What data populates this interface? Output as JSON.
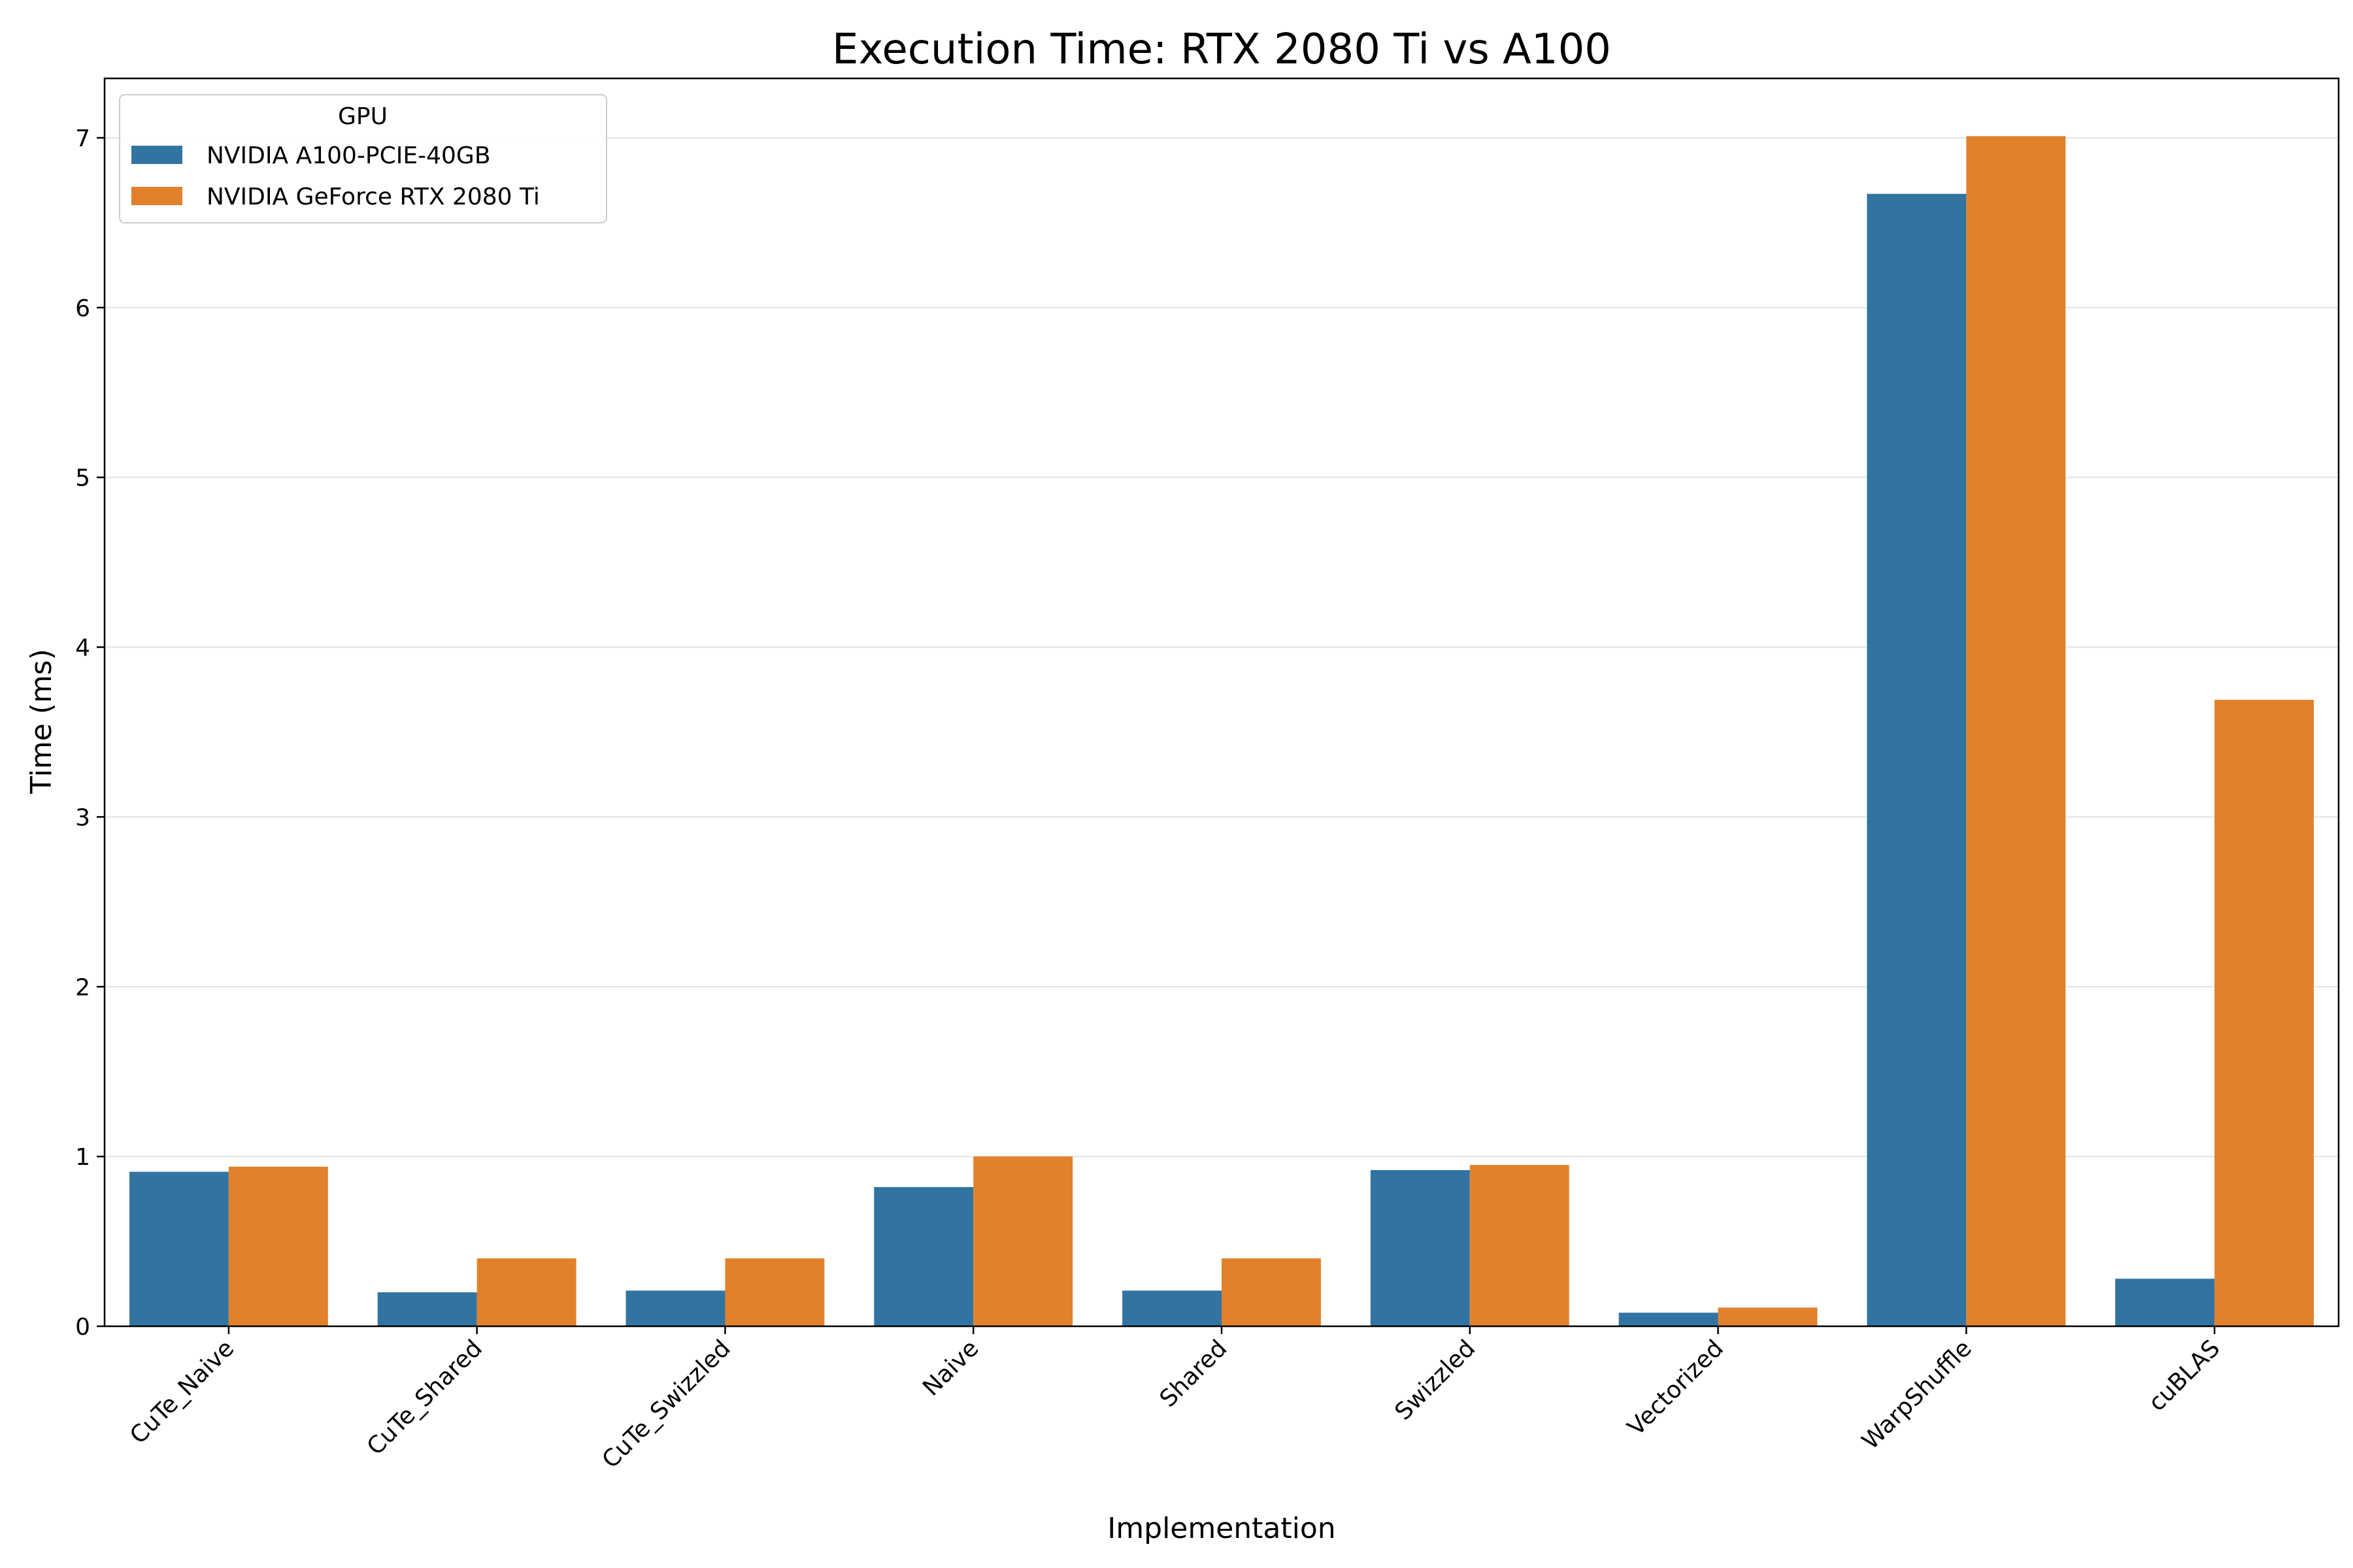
{
  "chart_data": {
    "type": "bar",
    "title": "Execution Time: RTX 2080 Ti vs A100",
    "xlabel": "Implementation",
    "ylabel": "Time (ms)",
    "ylim": [
      0,
      7.35
    ],
    "yticks": [
      "0",
      "1",
      "2",
      "3",
      "4",
      "5",
      "6",
      "7"
    ],
    "grid": "horizontal",
    "legend": {
      "title": "GPU",
      "placement": "top-left"
    },
    "categories": [
      "CuTe_Naive",
      "CuTe_Shared",
      "CuTe_Swizzled",
      "Naive",
      "Shared",
      "Swizzled",
      "Vectorized",
      "WarpShuffle",
      "cuBLAS"
    ],
    "series": [
      {
        "name": "NVIDIA A100-PCIE-40GB",
        "color": "#3274a1",
        "values": [
          0.91,
          0.2,
          0.21,
          0.82,
          0.21,
          0.92,
          0.08,
          6.67,
          0.28
        ]
      },
      {
        "name": "NVIDIA GeForce RTX 2080 Ti",
        "color": "#e1812c",
        "values": [
          0.94,
          0.4,
          0.4,
          1.0,
          0.4,
          0.95,
          0.11,
          7.01,
          3.69
        ]
      }
    ]
  }
}
